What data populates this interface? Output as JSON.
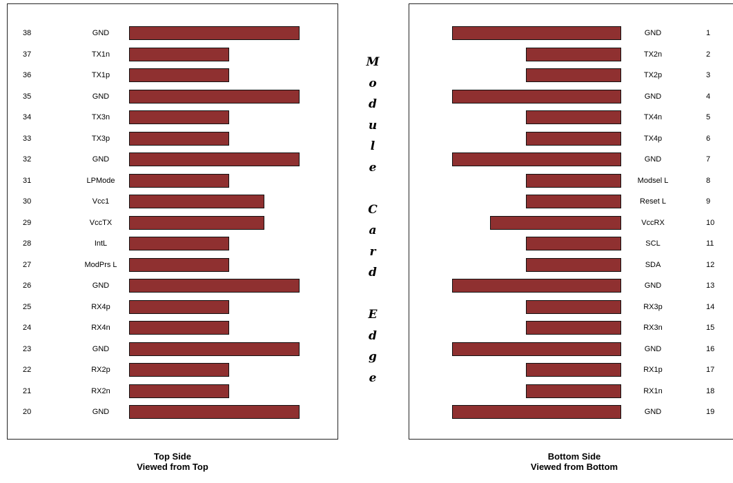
{
  "top_side": {
    "caption_line1": "Top Side",
    "caption_line2": "Viewed from Top",
    "pins": [
      {
        "num": "38",
        "label": "GND",
        "length": "long"
      },
      {
        "num": "37",
        "label": "TX1n",
        "length": "short"
      },
      {
        "num": "36",
        "label": "TX1p",
        "length": "short"
      },
      {
        "num": "35",
        "label": "GND",
        "length": "long"
      },
      {
        "num": "34",
        "label": "TX3n",
        "length": "short"
      },
      {
        "num": "33",
        "label": "TX3p",
        "length": "short"
      },
      {
        "num": "32",
        "label": "GND",
        "length": "long"
      },
      {
        "num": "31",
        "label": "LPMode",
        "length": "short"
      },
      {
        "num": "30",
        "label": "Vcc1",
        "length": "medium"
      },
      {
        "num": "29",
        "label": "VccTX",
        "length": "medium"
      },
      {
        "num": "28",
        "label": "IntL",
        "length": "short"
      },
      {
        "num": "27",
        "label": "ModPrs L",
        "length": "short"
      },
      {
        "num": "26",
        "label": "GND",
        "length": "long"
      },
      {
        "num": "25",
        "label": "RX4p",
        "length": "short"
      },
      {
        "num": "24",
        "label": "RX4n",
        "length": "short"
      },
      {
        "num": "23",
        "label": "GND",
        "length": "long"
      },
      {
        "num": "22",
        "label": "RX2p",
        "length": "short"
      },
      {
        "num": "21",
        "label": "RX2n",
        "length": "short"
      },
      {
        "num": "20",
        "label": "GND",
        "length": "long"
      }
    ]
  },
  "bottom_side": {
    "caption_line1": "Bottom Side",
    "caption_line2": "Viewed from Bottom",
    "pins": [
      {
        "num": "1",
        "label": "GND",
        "length": "long"
      },
      {
        "num": "2",
        "label": "TX2n",
        "length": "short"
      },
      {
        "num": "3",
        "label": "TX2p",
        "length": "short"
      },
      {
        "num": "4",
        "label": "GND",
        "length": "long"
      },
      {
        "num": "5",
        "label": "TX4n",
        "length": "short"
      },
      {
        "num": "6",
        "label": "TX4p",
        "length": "short"
      },
      {
        "num": "7",
        "label": "GND",
        "length": "long"
      },
      {
        "num": "8",
        "label": "Modsel L",
        "length": "short"
      },
      {
        "num": "9",
        "label": "Reset L",
        "length": "short"
      },
      {
        "num": "10",
        "label": "VccRX",
        "length": "medium"
      },
      {
        "num": "11",
        "label": "SCL",
        "length": "short"
      },
      {
        "num": "12",
        "label": "SDA",
        "length": "short"
      },
      {
        "num": "13",
        "label": "GND",
        "length": "long"
      },
      {
        "num": "14",
        "label": "RX3p",
        "length": "short"
      },
      {
        "num": "15",
        "label": "RX3n",
        "length": "short"
      },
      {
        "num": "16",
        "label": "GND",
        "length": "long"
      },
      {
        "num": "17",
        "label": "RX1p",
        "length": "short"
      },
      {
        "num": "18",
        "label": "RX1n",
        "length": "short"
      },
      {
        "num": "19",
        "label": "GND",
        "length": "long"
      }
    ]
  },
  "edge_label": [
    "M",
    "o",
    "d",
    "u",
    "l",
    "e",
    "",
    "C",
    "a",
    "r",
    "d",
    "",
    "E",
    "d",
    "g",
    "e"
  ],
  "colors": {
    "pad_fill": "#8f3030",
    "pad_border": "#111111"
  }
}
